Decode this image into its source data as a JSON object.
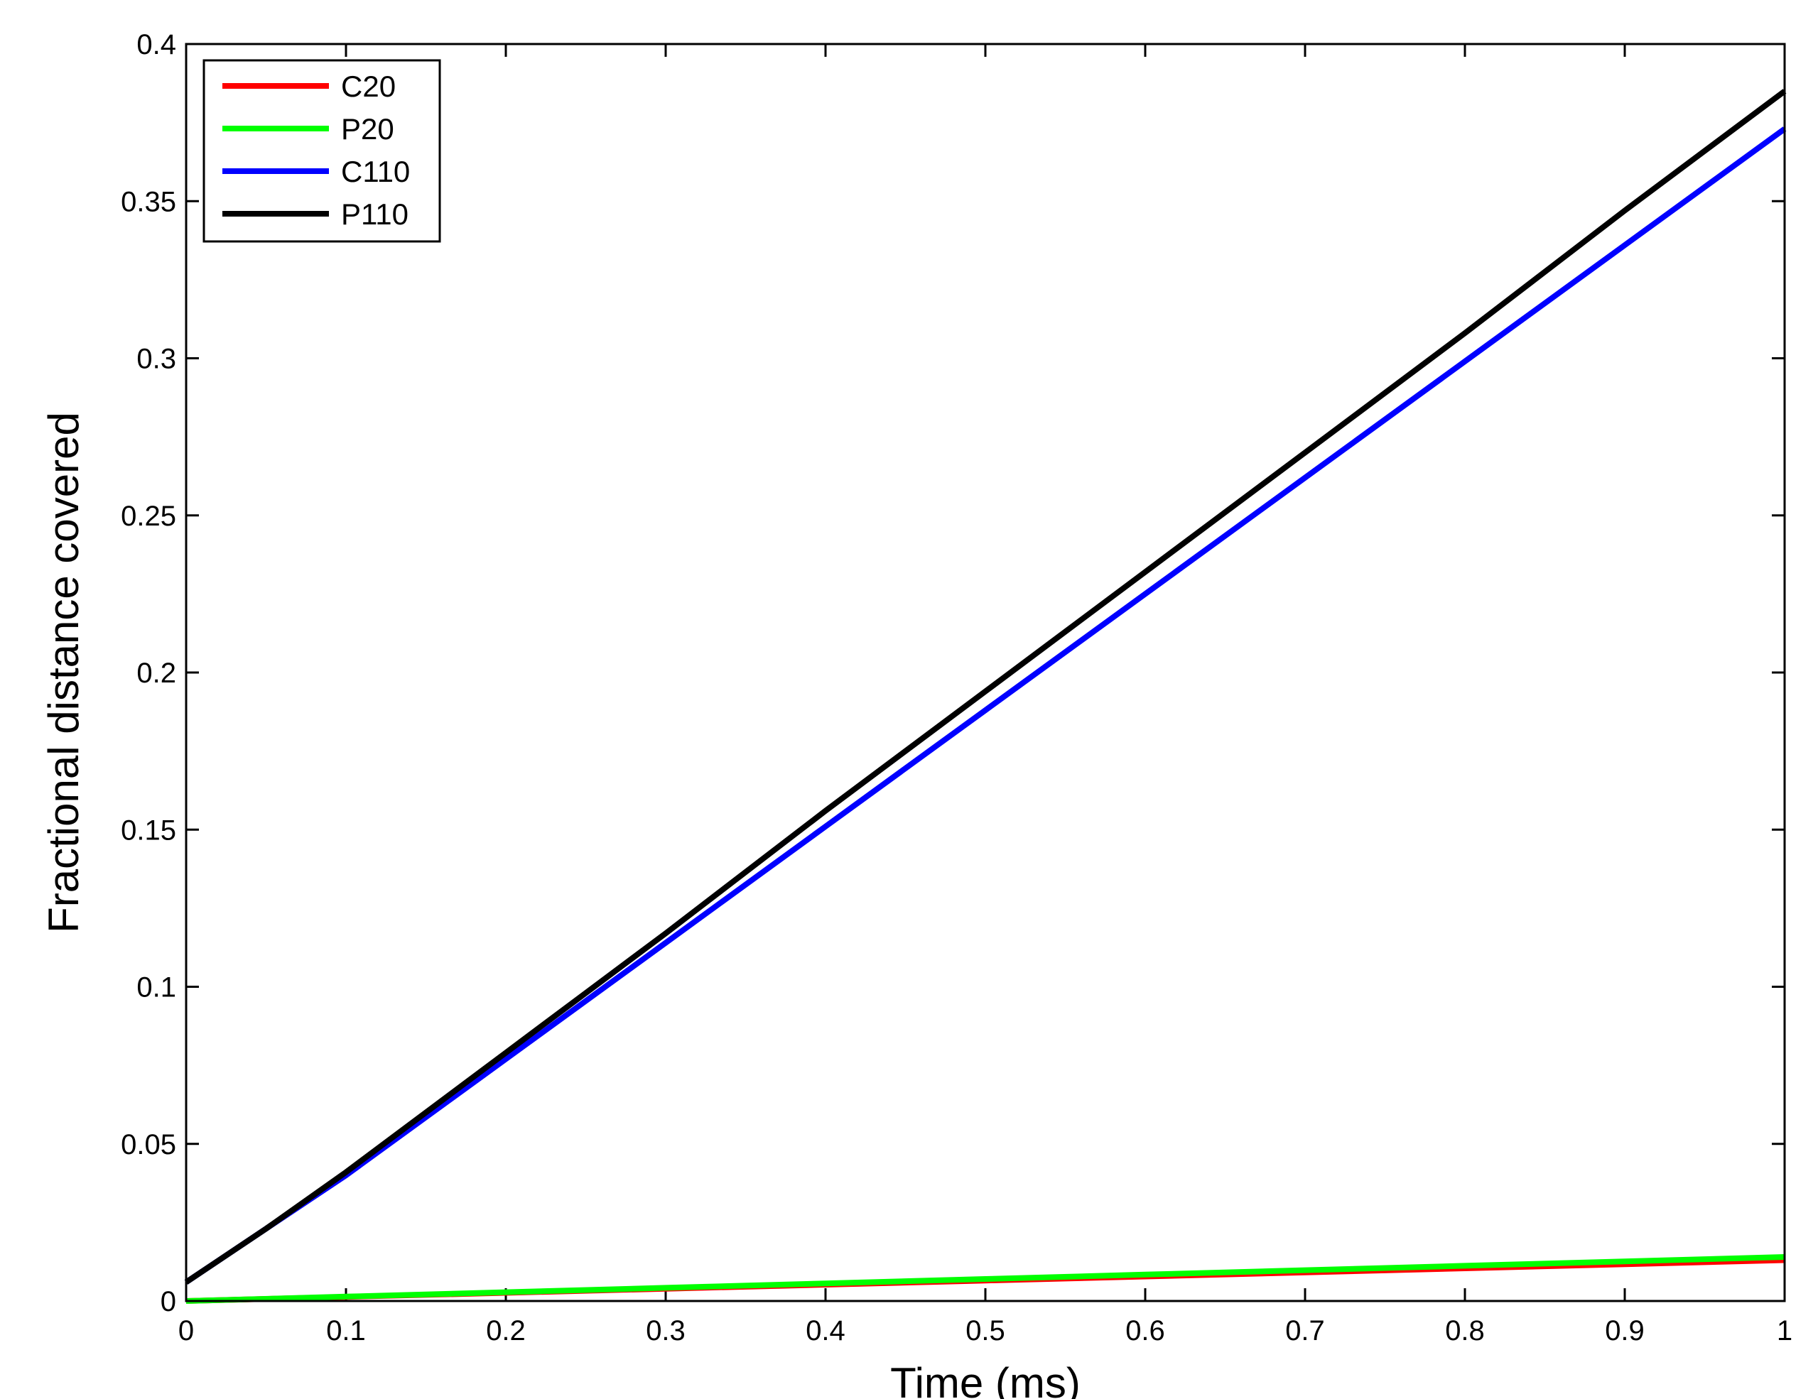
{
  "chart_data": {
    "type": "line",
    "title": "",
    "xlabel": "Time (ms)",
    "ylabel": "Fractional distance covered",
    "xlim": [
      0,
      1
    ],
    "ylim": [
      0,
      0.4
    ],
    "xticks": [
      0,
      0.1,
      0.2,
      0.3,
      0.4,
      0.5,
      0.6,
      0.7,
      0.8,
      0.9,
      1
    ],
    "xtick_labels": [
      "0",
      "0.1",
      "0.2",
      "0.3",
      "0.4",
      "0.5",
      "0.6",
      "0.7",
      "0.8",
      "0.9",
      "1"
    ],
    "yticks": [
      0,
      0.05,
      0.1,
      0.15,
      0.2,
      0.25,
      0.3,
      0.35,
      0.4
    ],
    "ytick_labels": [
      "0",
      "0.05",
      "0.1",
      "0.15",
      "0.2",
      "0.25",
      "0.3",
      "0.35",
      "0.4"
    ],
    "grid": false,
    "legend_position": "top-left",
    "series": [
      {
        "name": "C20",
        "color": "#ff0000",
        "x": [
          0,
          0.1,
          0.2,
          0.3,
          0.4,
          0.5,
          0.6,
          0.7,
          0.8,
          0.9,
          1
        ],
        "y": [
          0,
          0.0013,
          0.0026,
          0.0039,
          0.0052,
          0.0065,
          0.0078,
          0.0091,
          0.0104,
          0.0117,
          0.013
        ]
      },
      {
        "name": "P20",
        "color": "#00ff00",
        "x": [
          0,
          0.1,
          0.2,
          0.3,
          0.4,
          0.5,
          0.6,
          0.7,
          0.8,
          0.9,
          1
        ],
        "y": [
          0,
          0.0014,
          0.0028,
          0.0042,
          0.0056,
          0.007,
          0.0084,
          0.0098,
          0.0112,
          0.0126,
          0.014
        ]
      },
      {
        "name": "C110",
        "color": "#0000ff",
        "x": [
          0,
          0.05,
          0.1,
          0.2,
          0.3,
          0.4,
          0.5,
          0.6,
          0.7,
          0.8,
          0.9,
          1
        ],
        "y": [
          0.006,
          0.023,
          0.04,
          0.077,
          0.114,
          0.151,
          0.188,
          0.225,
          0.262,
          0.299,
          0.336,
          0.373
        ]
      },
      {
        "name": "P110",
        "color": "#000000",
        "x": [
          0,
          0.05,
          0.1,
          0.2,
          0.3,
          0.4,
          0.5,
          0.6,
          0.7,
          0.8,
          0.9,
          1
        ],
        "y": [
          0.006,
          0.023,
          0.041,
          0.079,
          0.117,
          0.156,
          0.194,
          0.232,
          0.27,
          0.308,
          0.347,
          0.385
        ]
      }
    ]
  }
}
